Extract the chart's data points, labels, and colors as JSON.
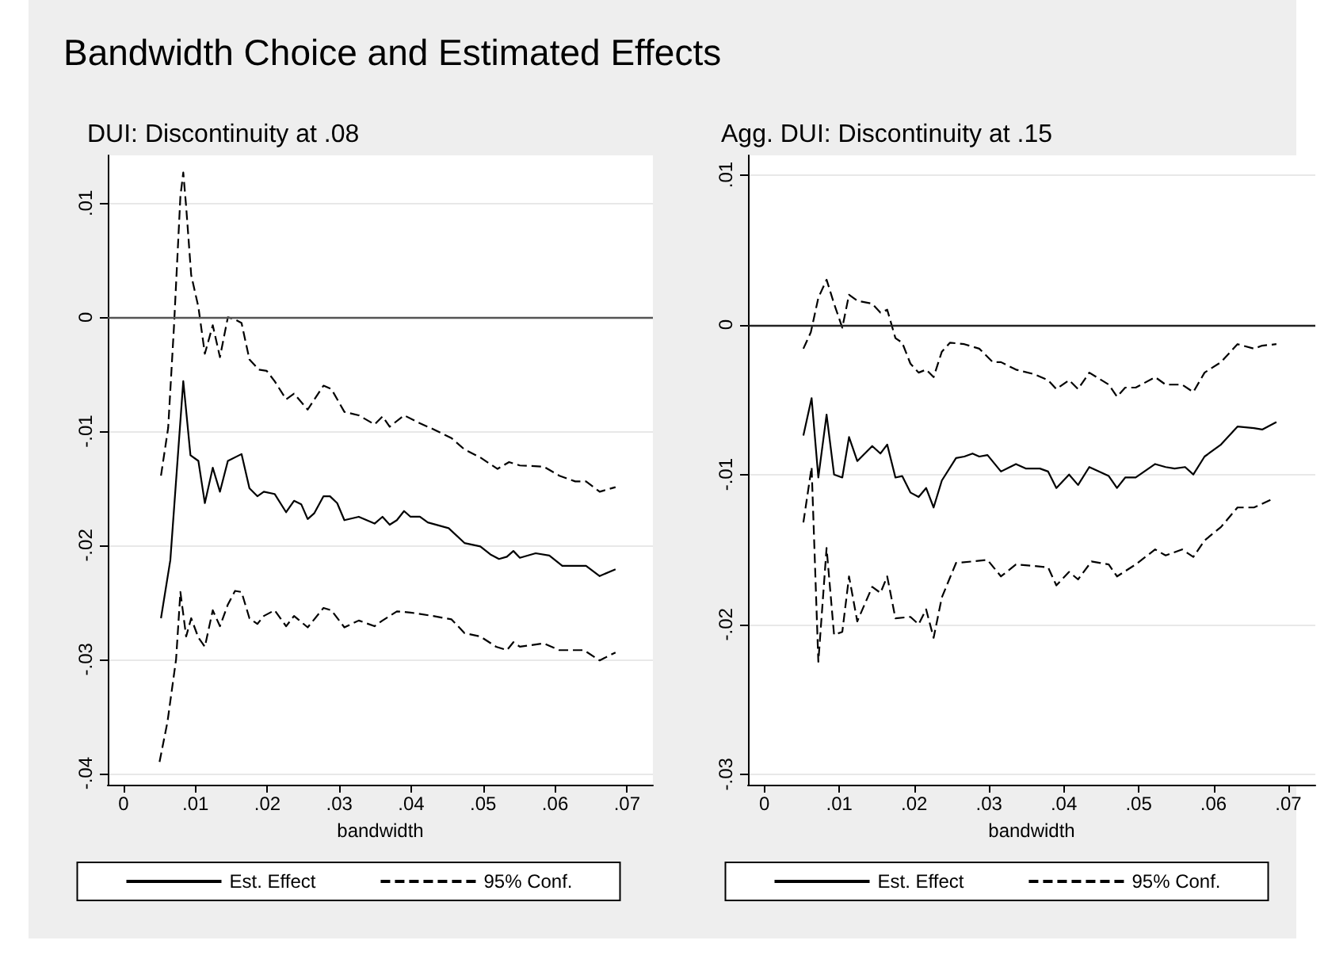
{
  "chart_data": [
    {
      "type": "line",
      "title": "Bandwidth Choice and Estimated Effects",
      "subtitle": "DUI: Discontinuity at .08",
      "xlabel": "bandwidth",
      "xlim": [
        -0.0022,
        0.0736
      ],
      "ylim": [
        -0.041,
        0.0142
      ],
      "xticks": [
        {
          "value": 0,
          "label": "0"
        },
        {
          "value": 0.01,
          "label": ".01"
        },
        {
          "value": 0.02,
          "label": ".02"
        },
        {
          "value": 0.03,
          "label": ".03"
        },
        {
          "value": 0.04,
          "label": ".04"
        },
        {
          "value": 0.05,
          "label": ".05"
        },
        {
          "value": 0.06,
          "label": ".06"
        },
        {
          "value": 0.07,
          "label": ".07"
        }
      ],
      "yticks": [
        {
          "value": -0.04,
          "label": "-.04"
        },
        {
          "value": -0.03,
          "label": "-.03"
        },
        {
          "value": -0.02,
          "label": "-.02"
        },
        {
          "value": -0.01,
          "label": "-.01"
        },
        {
          "value": 0,
          "label": "0"
        },
        {
          "value": 0.01,
          "label": ".01"
        }
      ],
      "grid": "y",
      "legend": "bottom",
      "marker": "none",
      "ref_lines": [
        {
          "axis": "y",
          "value": 0,
          "color": "#555555"
        }
      ],
      "series": [
        {
          "name": "Est. Effect",
          "color": "#000000",
          "line_style": "solid",
          "x": [
            0.0052,
            0.0065,
            0.0083,
            0.0093,
            0.0104,
            0.0113,
            0.0124,
            0.0134,
            0.0145,
            0.0164,
            0.0175,
            0.0186,
            0.0195,
            0.021,
            0.0226,
            0.0237,
            0.0247,
            0.0256,
            0.0265,
            0.0278,
            0.0287,
            0.0297,
            0.0307,
            0.0327,
            0.0349,
            0.036,
            0.037,
            0.038,
            0.039,
            0.0399,
            0.0412,
            0.0423,
            0.0452,
            0.0474,
            0.0496,
            0.051,
            0.0522,
            0.0533,
            0.0542,
            0.0551,
            0.0573,
            0.0592,
            0.061,
            0.0628,
            0.0643,
            0.0662,
            0.0684
          ],
          "values": [
            -0.0264,
            -0.0213,
            -0.0056,
            -0.0121,
            -0.0126,
            -0.0163,
            -0.0132,
            -0.0153,
            -0.0126,
            -0.012,
            -0.015,
            -0.0157,
            -0.0153,
            -0.0155,
            -0.0171,
            -0.0161,
            -0.0164,
            -0.0177,
            -0.0172,
            -0.0157,
            -0.0157,
            -0.0163,
            -0.0178,
            -0.0175,
            -0.0181,
            -0.0175,
            -0.0182,
            -0.0178,
            -0.017,
            -0.0175,
            -0.0175,
            -0.018,
            -0.0185,
            -0.0198,
            -0.0201,
            -0.0208,
            -0.0212,
            -0.021,
            -0.0205,
            -0.0211,
            -0.0207,
            -0.0209,
            -0.0218,
            -0.0218,
            -0.0218,
            -0.0227,
            -0.0221
          ]
        },
        {
          "name": "95% Conf.",
          "color": "#000000",
          "line_style": "dashed",
          "x": [
            0.0052,
            0.0062,
            0.007,
            0.0079,
            0.0083,
            0.0087,
            0.0094,
            0.0104,
            0.0113,
            0.0124,
            0.0134,
            0.0145,
            0.0155,
            0.0164,
            0.0175,
            0.0188,
            0.0199,
            0.021,
            0.0226,
            0.0237,
            0.0256,
            0.0278,
            0.0289,
            0.0307,
            0.0327,
            0.0349,
            0.036,
            0.037,
            0.039,
            0.0412,
            0.043,
            0.0456,
            0.0474,
            0.0496,
            0.052,
            0.0536,
            0.0551,
            0.0584,
            0.0606,
            0.0628,
            0.0643,
            0.0662,
            0.0684
          ],
          "values": [
            -0.0139,
            -0.0097,
            -0.0009,
            0.0106,
            0.0127,
            0.0097,
            0.0037,
            0.0009,
            -0.0032,
            -0.0007,
            -0.0035,
            0,
            -0.0002,
            -0.0005,
            -0.0037,
            -0.0046,
            -0.0047,
            -0.0056,
            -0.0072,
            -0.0067,
            -0.0081,
            -0.006,
            -0.0063,
            -0.0083,
            -0.0086,
            -0.0094,
            -0.0087,
            -0.0096,
            -0.0086,
            -0.0093,
            -0.0098,
            -0.0106,
            -0.0116,
            -0.0123,
            -0.0133,
            -0.0127,
            -0.013,
            -0.0131,
            -0.0139,
            -0.0144,
            -0.0144,
            -0.0153,
            -0.0149
          ]
        },
        {
          "color": "#000000",
          "line_style": "dashed",
          "x": [
            0.005,
            0.0061,
            0.0073,
            0.0079,
            0.0087,
            0.0094,
            0.0104,
            0.0113,
            0.0124,
            0.0134,
            0.0145,
            0.0155,
            0.0164,
            0.0175,
            0.0186,
            0.0195,
            0.021,
            0.0226,
            0.0237,
            0.0256,
            0.0278,
            0.0289,
            0.0307,
            0.0327,
            0.0349,
            0.036,
            0.038,
            0.0399,
            0.043,
            0.0456,
            0.0474,
            0.0496,
            0.0518,
            0.0533,
            0.0542,
            0.0551,
            0.0584,
            0.0606,
            0.064,
            0.0662,
            0.0684
          ],
          "values": [
            -0.039,
            -0.0355,
            -0.03,
            -0.0241,
            -0.028,
            -0.0264,
            -0.0281,
            -0.0289,
            -0.0257,
            -0.0271,
            -0.0252,
            -0.024,
            -0.0241,
            -0.0264,
            -0.0269,
            -0.0262,
            -0.0257,
            -0.0271,
            -0.0262,
            -0.0272,
            -0.0255,
            -0.0257,
            -0.0272,
            -0.0266,
            -0.0271,
            -0.0266,
            -0.0258,
            -0.0259,
            -0.0262,
            -0.0265,
            -0.0277,
            -0.028,
            -0.0289,
            -0.0292,
            -0.0285,
            -0.0289,
            -0.0286,
            -0.0292,
            -0.0292,
            -0.0301,
            -0.0294
          ]
        }
      ]
    },
    {
      "type": "line",
      "subtitle": "Agg. DUI: Discontinuity at .15",
      "xlabel": "bandwidth",
      "xlim": [
        -0.0022,
        0.0736
      ],
      "ylim": [
        -0.0307,
        0.0113
      ],
      "xticks": [
        {
          "value": 0,
          "label": "0"
        },
        {
          "value": 0.01,
          "label": ".01"
        },
        {
          "value": 0.02,
          "label": ".02"
        },
        {
          "value": 0.03,
          "label": ".03"
        },
        {
          "value": 0.04,
          "label": ".04"
        },
        {
          "value": 0.05,
          "label": ".05"
        },
        {
          "value": 0.06,
          "label": ".06"
        },
        {
          "value": 0.07,
          "label": ".07"
        }
      ],
      "yticks": [
        {
          "value": -0.03,
          "label": "-.03"
        },
        {
          "value": -0.02,
          "label": "-.02"
        },
        {
          "value": -0.01,
          "label": "-.01"
        },
        {
          "value": 0,
          "label": "0"
        },
        {
          "value": 0.01,
          "label": ".01"
        }
      ],
      "grid": "y",
      "legend": "bottom",
      "marker": "none",
      "ref_lines": [
        {
          "axis": "y",
          "value": 0,
          "color": "#222222"
        }
      ],
      "series": [
        {
          "name": "Est. Effect",
          "color": "#000000",
          "line_style": "solid",
          "x": [
            0.0052,
            0.0063,
            0.0072,
            0.0083,
            0.0093,
            0.0104,
            0.0113,
            0.0124,
            0.0144,
            0.0155,
            0.0164,
            0.0175,
            0.0184,
            0.0195,
            0.0206,
            0.0216,
            0.0226,
            0.0237,
            0.0256,
            0.0267,
            0.0278,
            0.0287,
            0.0298,
            0.0316,
            0.0336,
            0.0349,
            0.0368,
            0.0379,
            0.039,
            0.0407,
            0.0419,
            0.0434,
            0.046,
            0.0471,
            0.0482,
            0.0496,
            0.0522,
            0.0536,
            0.0548,
            0.0562,
            0.0573,
            0.0588,
            0.061,
            0.0632,
            0.0654,
            0.0665,
            0.0684
          ],
          "values": [
            -0.0074,
            -0.0049,
            -0.0102,
            -0.006,
            -0.01,
            -0.0102,
            -0.0075,
            -0.0091,
            -0.0081,
            -0.0086,
            -0.008,
            -0.0102,
            -0.0101,
            -0.0112,
            -0.0115,
            -0.0109,
            -0.0122,
            -0.0104,
            -0.0089,
            -0.0088,
            -0.0086,
            -0.0088,
            -0.0087,
            -0.0098,
            -0.0093,
            -0.0096,
            -0.0096,
            -0.0098,
            -0.0109,
            -0.01,
            -0.0107,
            -0.0095,
            -0.0101,
            -0.0109,
            -0.0102,
            -0.0102,
            -0.0093,
            -0.0095,
            -0.0096,
            -0.0095,
            -0.01,
            -0.0088,
            -0.008,
            -0.0068,
            -0.0069,
            -0.007,
            -0.0065
          ]
        },
        {
          "name": "95% Conf.",
          "color": "#000000",
          "line_style": "dashed",
          "x": [
            0.0052,
            0.0062,
            0.0072,
            0.0083,
            0.0093,
            0.0104,
            0.0113,
            0.0124,
            0.0144,
            0.0155,
            0.0164,
            0.0175,
            0.0184,
            0.0195,
            0.0206,
            0.0216,
            0.0226,
            0.0237,
            0.0248,
            0.0267,
            0.0287,
            0.0305,
            0.0316,
            0.0336,
            0.036,
            0.0379,
            0.039,
            0.0407,
            0.0419,
            0.0434,
            0.046,
            0.0471,
            0.0482,
            0.0496,
            0.0522,
            0.0536,
            0.0558,
            0.0573,
            0.0588,
            0.061,
            0.0632,
            0.0654,
            0.0665,
            0.0684
          ],
          "values": [
            -0.0016,
            -0.0005,
            0.0018,
            0.003,
            0.0014,
            -0.0002,
            0.002,
            0.0016,
            0.0014,
            0.0008,
            0.001,
            -0.0009,
            -0.0012,
            -0.0026,
            -0.0032,
            -0.003,
            -0.0035,
            -0.0018,
            -0.0012,
            -0.0013,
            -0.0016,
            -0.0025,
            -0.0025,
            -0.003,
            -0.0033,
            -0.0037,
            -0.0043,
            -0.0037,
            -0.0043,
            -0.0032,
            -0.004,
            -0.0048,
            -0.0042,
            -0.0042,
            -0.0035,
            -0.004,
            -0.004,
            -0.0045,
            -0.0032,
            -0.0025,
            -0.0013,
            -0.0016,
            -0.0014,
            -0.0013
          ]
        },
        {
          "color": "#000000",
          "line_style": "dashed",
          "x": [
            0.0052,
            0.0063,
            0.0072,
            0.0083,
            0.0093,
            0.0104,
            0.0113,
            0.0124,
            0.0144,
            0.0155,
            0.0164,
            0.0175,
            0.0195,
            0.0206,
            0.0216,
            0.0226,
            0.0237,
            0.0256,
            0.0278,
            0.0298,
            0.0316,
            0.0336,
            0.036,
            0.0379,
            0.039,
            0.0407,
            0.0419,
            0.0437,
            0.046,
            0.0471,
            0.0496,
            0.0522,
            0.0536,
            0.0558,
            0.0573,
            0.0588,
            0.061,
            0.0632,
            0.0654,
            0.0676
          ],
          "values": [
            -0.0132,
            -0.0095,
            -0.0225,
            -0.0149,
            -0.0207,
            -0.0205,
            -0.0168,
            -0.0198,
            -0.0175,
            -0.0179,
            -0.0168,
            -0.0196,
            -0.0195,
            -0.02,
            -0.019,
            -0.0209,
            -0.0182,
            -0.0159,
            -0.0158,
            -0.0157,
            -0.0168,
            -0.016,
            -0.0161,
            -0.0162,
            -0.0174,
            -0.0165,
            -0.017,
            -0.0158,
            -0.016,
            -0.0168,
            -0.016,
            -0.015,
            -0.0154,
            -0.015,
            -0.0155,
            -0.0144,
            -0.0135,
            -0.0122,
            -0.0122,
            -0.0117
          ]
        }
      ]
    }
  ]
}
